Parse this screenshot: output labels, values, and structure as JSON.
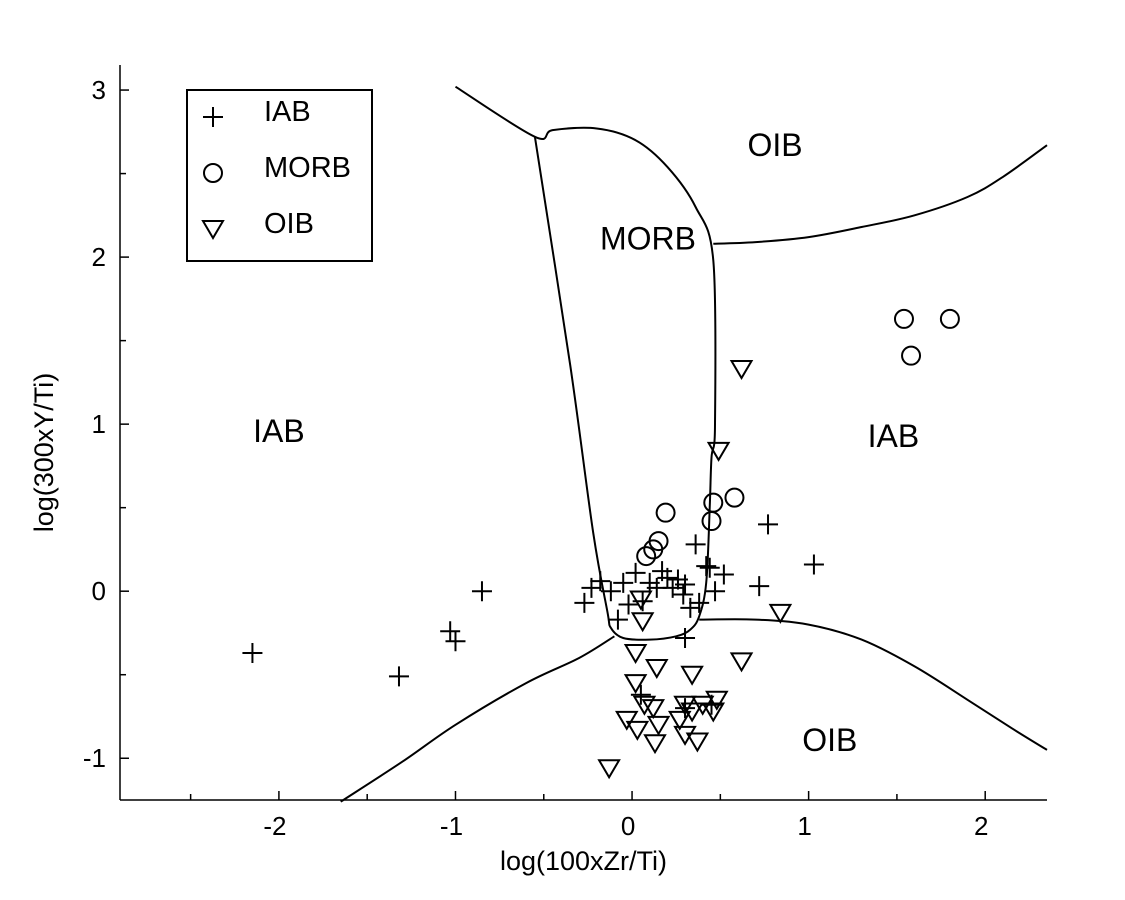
{
  "chart_data": {
    "type": "scatter",
    "title": "",
    "xlabel": "log(100xZr/Ti)",
    "ylabel": "log(300xY/Ti)",
    "xlim": [
      -2.9,
      2.35
    ],
    "ylim": [
      -1.25,
      3.15
    ],
    "x_ticks": [
      -2,
      -1,
      0,
      1,
      2
    ],
    "x_tick_labels": [
      "-2",
      "-1",
      "0",
      "1",
      "2"
    ],
    "x_minor_ticks": [
      -2.5,
      -1.5,
      -0.5,
      0.5,
      1.5
    ],
    "y_ticks": [
      -1,
      0,
      1,
      2,
      3
    ],
    "y_tick_labels": [
      "-1",
      "0",
      "1",
      "2",
      "3"
    ],
    "y_minor_ticks": [
      -0.5,
      0.5,
      1.5,
      2.5
    ],
    "grid": false,
    "legend_position": "top-left",
    "legend": [
      {
        "label": "IAB",
        "marker": "plus"
      },
      {
        "label": "MORB",
        "marker": "circle"
      },
      {
        "label": "OIB",
        "marker": "triangle-down"
      }
    ],
    "region_labels": [
      {
        "text": "IAB",
        "x": -2.0,
        "y": 0.96
      },
      {
        "text": "MORB",
        "x": 0.09,
        "y": 2.11
      },
      {
        "text": "OIB",
        "x": 0.81,
        "y": 2.67
      },
      {
        "text": "IAB",
        "x": 1.48,
        "y": 0.93
      },
      {
        "text": "OIB",
        "x": 1.12,
        "y": -0.89
      }
    ],
    "boundaries": [
      {
        "name": "morb-field-boundary",
        "points": [
          [
            -1.0,
            3.02
          ],
          [
            -0.55,
            2.72
          ],
          [
            -0.45,
            2.76
          ],
          [
            -0.2,
            2.77
          ],
          [
            0.02,
            2.7
          ],
          [
            0.2,
            2.54
          ],
          [
            0.36,
            2.3
          ],
          [
            0.46,
            1.98
          ],
          [
            0.47,
            1.0
          ],
          [
            0.45,
            0.8
          ],
          [
            0.44,
            0.5
          ],
          [
            0.42,
            0.05
          ],
          [
            0.38,
            -0.15
          ],
          [
            0.33,
            -0.23
          ],
          [
            0.25,
            -0.27
          ],
          [
            0.1,
            -0.29
          ],
          [
            -0.05,
            -0.28
          ],
          [
            -0.12,
            -0.22
          ],
          [
            -0.14,
            -0.12
          ],
          [
            -0.22,
            0.35
          ],
          [
            -0.35,
            1.35
          ],
          [
            -0.55,
            2.72
          ]
        ]
      },
      {
        "name": "oib-upper-boundary",
        "points": [
          [
            0.46,
            2.08
          ],
          [
            0.7,
            2.09
          ],
          [
            1.0,
            2.12
          ],
          [
            1.3,
            2.18
          ],
          [
            1.6,
            2.25
          ],
          [
            1.9,
            2.36
          ],
          [
            2.1,
            2.48
          ],
          [
            2.35,
            2.67
          ]
        ]
      },
      {
        "name": "oib-lower-left-boundary",
        "points": [
          [
            -0.1,
            -0.27
          ],
          [
            -0.3,
            -0.4
          ],
          [
            -0.6,
            -0.55
          ],
          [
            -1.0,
            -0.8
          ],
          [
            -1.3,
            -1.02
          ],
          [
            -1.65,
            -1.26
          ]
        ]
      },
      {
        "name": "oib-lower-right-boundary",
        "points": [
          [
            0.38,
            -0.17
          ],
          [
            0.7,
            -0.17
          ],
          [
            1.0,
            -0.2
          ],
          [
            1.3,
            -0.29
          ],
          [
            1.6,
            -0.45
          ],
          [
            1.9,
            -0.65
          ],
          [
            2.15,
            -0.82
          ],
          [
            2.35,
            -0.95
          ]
        ]
      }
    ],
    "series": [
      {
        "name": "IAB",
        "marker": "plus",
        "points": [
          [
            -2.15,
            -0.37
          ],
          [
            -1.32,
            -0.51
          ],
          [
            -1.03,
            -0.24
          ],
          [
            -1.0,
            -0.3
          ],
          [
            -0.85,
            0.0
          ],
          [
            -0.27,
            -0.07
          ],
          [
            -0.23,
            0.02
          ],
          [
            -0.18,
            0.06
          ],
          [
            -0.12,
            0.0
          ],
          [
            -0.08,
            -0.17
          ],
          [
            -0.05,
            0.05
          ],
          [
            -0.02,
            -0.08
          ],
          [
            0.02,
            0.11
          ],
          [
            0.06,
            -0.06
          ],
          [
            0.1,
            0.05
          ],
          [
            0.14,
            0.02
          ],
          [
            0.17,
            0.12
          ],
          [
            0.2,
            0.08
          ],
          [
            0.23,
            0.02
          ],
          [
            0.26,
            0.07
          ],
          [
            0.29,
            -0.02
          ],
          [
            0.3,
            0.04
          ],
          [
            0.33,
            -0.1
          ],
          [
            0.36,
            0.28
          ],
          [
            0.38,
            -0.07
          ],
          [
            0.42,
            0.15
          ],
          [
            0.44,
            0.14
          ],
          [
            0.47,
            0.0
          ],
          [
            0.52,
            0.1
          ],
          [
            0.3,
            -0.28
          ],
          [
            0.05,
            -0.62
          ],
          [
            0.3,
            -0.7
          ],
          [
            0.45,
            -0.68
          ],
          [
            0.72,
            0.03
          ],
          [
            0.77,
            0.4
          ],
          [
            1.03,
            0.16
          ]
        ]
      },
      {
        "name": "MORB",
        "marker": "circle",
        "points": [
          [
            1.54,
            1.63
          ],
          [
            1.58,
            1.41
          ],
          [
            1.8,
            1.63
          ],
          [
            0.58,
            0.56
          ],
          [
            0.46,
            0.53
          ],
          [
            0.45,
            0.42
          ],
          [
            0.19,
            0.47
          ],
          [
            0.15,
            0.3
          ],
          [
            0.12,
            0.25
          ],
          [
            0.08,
            0.21
          ]
        ]
      },
      {
        "name": "OIB",
        "marker": "triangle-down",
        "points": [
          [
            0.62,
            1.33
          ],
          [
            0.49,
            0.84
          ],
          [
            0.84,
            -0.13
          ],
          [
            0.62,
            -0.42
          ],
          [
            -0.13,
            -1.06
          ],
          [
            0.02,
            -0.37
          ],
          [
            0.02,
            -0.55
          ],
          [
            0.06,
            -0.18
          ],
          [
            0.05,
            -0.05
          ],
          [
            0.14,
            -0.46
          ],
          [
            0.34,
            -0.5
          ],
          [
            0.07,
            -0.68
          ],
          [
            0.12,
            -0.7
          ],
          [
            -0.03,
            -0.77
          ],
          [
            0.03,
            -0.83
          ],
          [
            0.15,
            -0.8
          ],
          [
            0.27,
            -0.77
          ],
          [
            0.3,
            -0.68
          ],
          [
            0.34,
            -0.72
          ],
          [
            0.4,
            -0.68
          ],
          [
            0.48,
            -0.65
          ],
          [
            0.46,
            -0.72
          ],
          [
            0.3,
            -0.86
          ],
          [
            0.37,
            -0.9
          ],
          [
            0.13,
            -0.91
          ]
        ]
      }
    ]
  }
}
